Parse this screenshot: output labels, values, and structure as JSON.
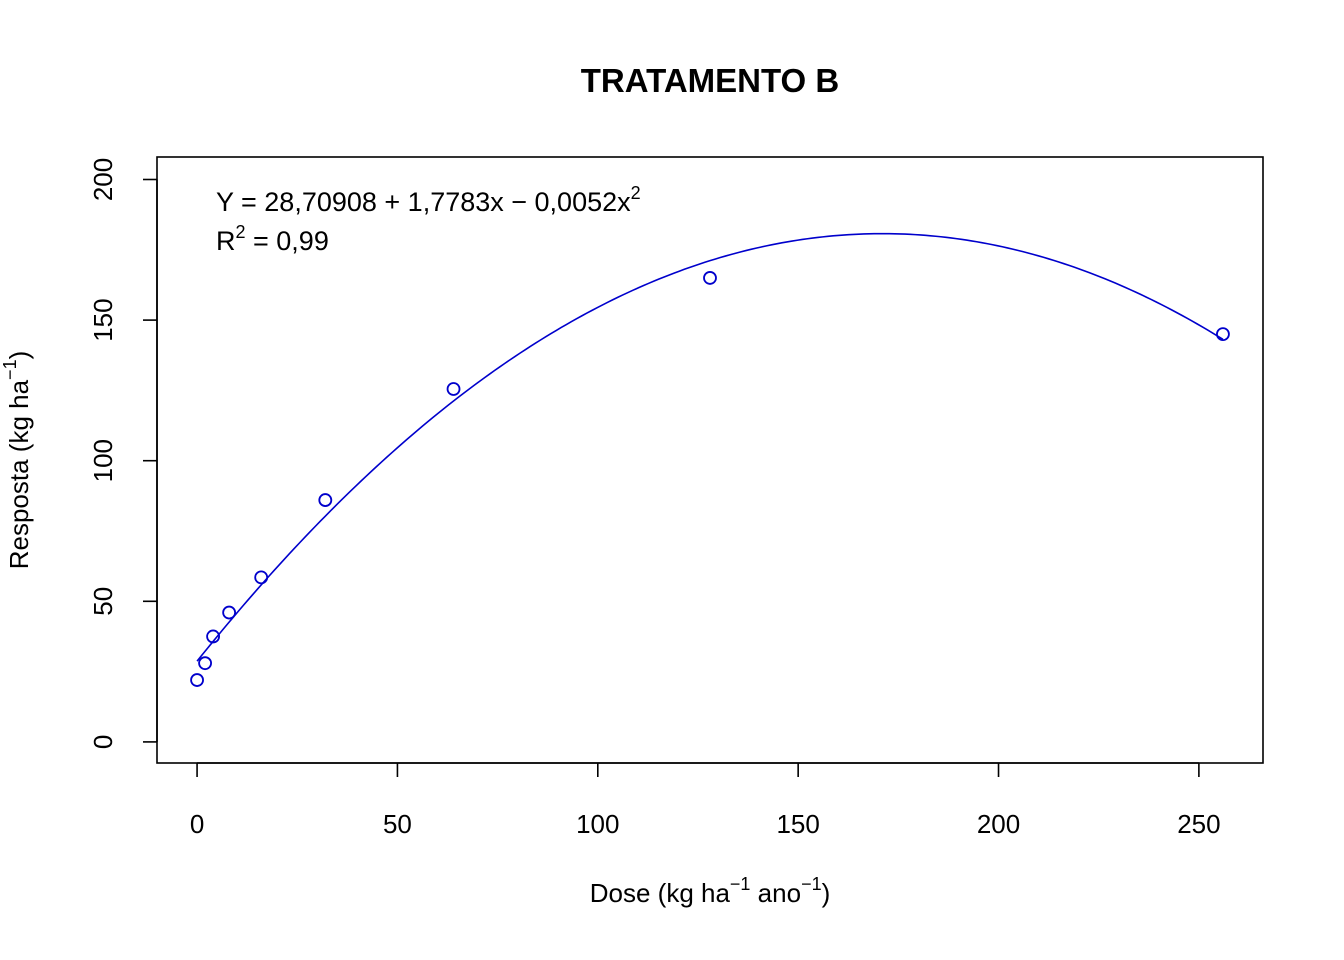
{
  "chart_data": {
    "type": "scatter",
    "title": "TRATAMENTO B",
    "xlabel": {
      "main": "Dose (kg ha",
      "sup1": "−1",
      "middle": " ano",
      "sup2": "−1",
      "close": ")"
    },
    "ylabel": {
      "main": "Resposta (kg ha",
      "sup": "−1",
      "close": ")"
    },
    "xlim": [
      -10,
      266
    ],
    "ylim": [
      -7.5,
      208
    ],
    "x_ticks": [
      0,
      50,
      100,
      150,
      200,
      250
    ],
    "y_ticks": [
      0,
      50,
      100,
      150,
      200
    ],
    "points": {
      "x": [
        0,
        2,
        4,
        8,
        16,
        32,
        64,
        128,
        256
      ],
      "y": [
        22,
        28,
        37.5,
        46,
        58.5,
        86,
        125.5,
        165,
        145
      ],
      "marker": "open-circle",
      "color": "#0000cc"
    },
    "fit": {
      "type": "quadratic",
      "coefficients": {
        "a": 28.70908,
        "b": 1.7783,
        "c": -0.0052
      },
      "x_range": [
        0,
        256
      ],
      "color": "#0000cc"
    },
    "annotations": {
      "equation": {
        "left": "Y = 28,70908 + 1,7783x − 0,0052x",
        "sup": "2"
      },
      "r2": {
        "left": "R",
        "sup": "2",
        "right": " = 0,99"
      }
    },
    "grid": false,
    "legend": "none"
  }
}
